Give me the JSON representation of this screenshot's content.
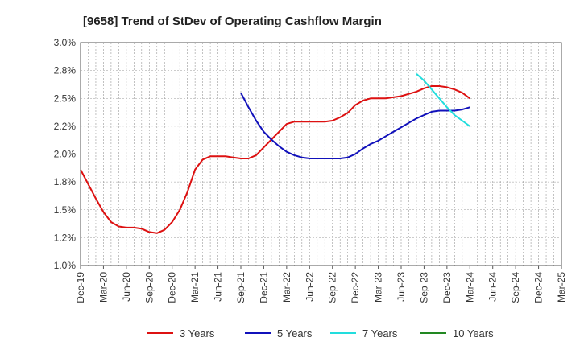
{
  "chart_data": {
    "type": "line",
    "title": "[9658]  Trend of StDev of Operating Cashflow Margin",
    "xlabel": "",
    "ylabel": "",
    "ylim": [
      1.0,
      3.0
    ],
    "yticks": [
      "1.0%",
      "1.2%",
      "1.5%",
      "1.8%",
      "2.0%",
      "2.2%",
      "2.5%",
      "2.8%",
      "3.0%"
    ],
    "xticks": [
      "Dec-19",
      "Mar-20",
      "Jun-20",
      "Sep-20",
      "Dec-20",
      "Mar-21",
      "Jun-21",
      "Sep-21",
      "Dec-21",
      "Mar-22",
      "Jun-22",
      "Sep-22",
      "Dec-22",
      "Mar-23",
      "Jun-23",
      "Sep-23",
      "Dec-23",
      "Mar-24",
      "Jun-24",
      "Sep-24",
      "Dec-24",
      "Mar-25"
    ],
    "grid": true,
    "legend_position": "bottom",
    "series": [
      {
        "name": "3 Years",
        "color": "#dd1111",
        "x": [
          "Dec-19",
          "Jan-20",
          "Feb-20",
          "Mar-20",
          "Apr-20",
          "May-20",
          "Jun-20",
          "Jul-20",
          "Aug-20",
          "Sep-20",
          "Oct-20",
          "Nov-20",
          "Dec-20",
          "Jan-21",
          "Feb-21",
          "Mar-21",
          "Apr-21",
          "May-21",
          "Jun-21",
          "Jul-21",
          "Aug-21",
          "Sep-21",
          "Oct-21",
          "Nov-21",
          "Dec-21",
          "Jan-22",
          "Feb-22",
          "Mar-22",
          "Apr-22",
          "May-22",
          "Jun-22",
          "Jul-22",
          "Aug-22",
          "Sep-22",
          "Oct-22",
          "Nov-22",
          "Dec-22",
          "Jan-23",
          "Feb-23",
          "Mar-23",
          "Apr-23",
          "May-23",
          "Jun-23",
          "Jul-23",
          "Aug-23",
          "Sep-23",
          "Oct-23",
          "Nov-23",
          "Dec-23",
          "Jan-24",
          "Feb-24",
          "Mar-24"
        ],
        "values": [
          1.86,
          1.73,
          1.6,
          1.48,
          1.39,
          1.35,
          1.34,
          1.34,
          1.33,
          1.3,
          1.29,
          1.32,
          1.39,
          1.5,
          1.66,
          1.86,
          1.95,
          1.98,
          1.98,
          1.98,
          1.97,
          1.96,
          1.96,
          1.99,
          2.06,
          2.13,
          2.2,
          2.27,
          2.29,
          2.29,
          2.29,
          2.29,
          2.29,
          2.3,
          2.33,
          2.37,
          2.44,
          2.48,
          2.5,
          2.5,
          2.5,
          2.51,
          2.52,
          2.54,
          2.56,
          2.59,
          2.61,
          2.61,
          2.6,
          2.58,
          2.55,
          2.5
        ]
      },
      {
        "name": "5 Years",
        "color": "#1111bb",
        "x": [
          "Sep-21",
          "Oct-21",
          "Nov-21",
          "Dec-21",
          "Jan-22",
          "Feb-22",
          "Mar-22",
          "Apr-22",
          "May-22",
          "Jun-22",
          "Jul-22",
          "Aug-22",
          "Sep-22",
          "Oct-22",
          "Nov-22",
          "Dec-22",
          "Jan-23",
          "Feb-23",
          "Mar-23",
          "Apr-23",
          "May-23",
          "Jun-23",
          "Jul-23",
          "Aug-23",
          "Sep-23",
          "Oct-23",
          "Nov-23",
          "Dec-23",
          "Jan-24",
          "Feb-24",
          "Mar-24"
        ],
        "values": [
          2.55,
          2.42,
          2.3,
          2.2,
          2.13,
          2.07,
          2.02,
          1.99,
          1.97,
          1.96,
          1.96,
          1.96,
          1.96,
          1.96,
          1.97,
          2.0,
          2.05,
          2.09,
          2.12,
          2.16,
          2.2,
          2.24,
          2.28,
          2.32,
          2.35,
          2.38,
          2.39,
          2.39,
          2.39,
          2.4,
          2.42
        ]
      },
      {
        "name": "7 Years",
        "color": "#22dddd",
        "x": [
          "Aug-23",
          "Sep-23",
          "Oct-23",
          "Nov-23",
          "Dec-23",
          "Jan-24",
          "Feb-24",
          "Mar-24"
        ],
        "values": [
          2.72,
          2.66,
          2.58,
          2.5,
          2.42,
          2.35,
          2.3,
          2.25
        ]
      },
      {
        "name": "10 Years",
        "color": "#228822",
        "x": [],
        "values": []
      }
    ]
  }
}
